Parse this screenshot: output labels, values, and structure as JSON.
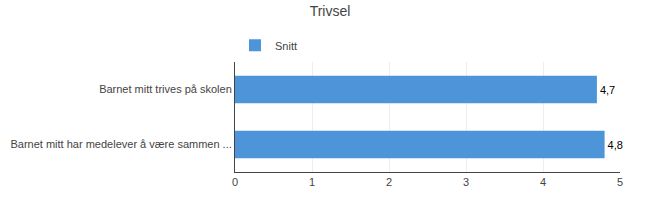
{
  "chart_data": {
    "type": "bar",
    "title": "Trivsel",
    "orientation": "horizontal",
    "categories": [
      "Barnet mitt har medelever å være sammen ...",
      "Barnet mitt trives på skolen"
    ],
    "series": [
      {
        "name": "Snitt",
        "color": "#4d94d9",
        "values": [
          4.8,
          4.7
        ],
        "value_labels": [
          "4,8",
          "4,7"
        ]
      }
    ],
    "xlim": [
      0,
      5
    ],
    "xticks": [
      0,
      1,
      2,
      3,
      4,
      5
    ],
    "grid": true,
    "legend": "upper left",
    "data_labels": true
  }
}
